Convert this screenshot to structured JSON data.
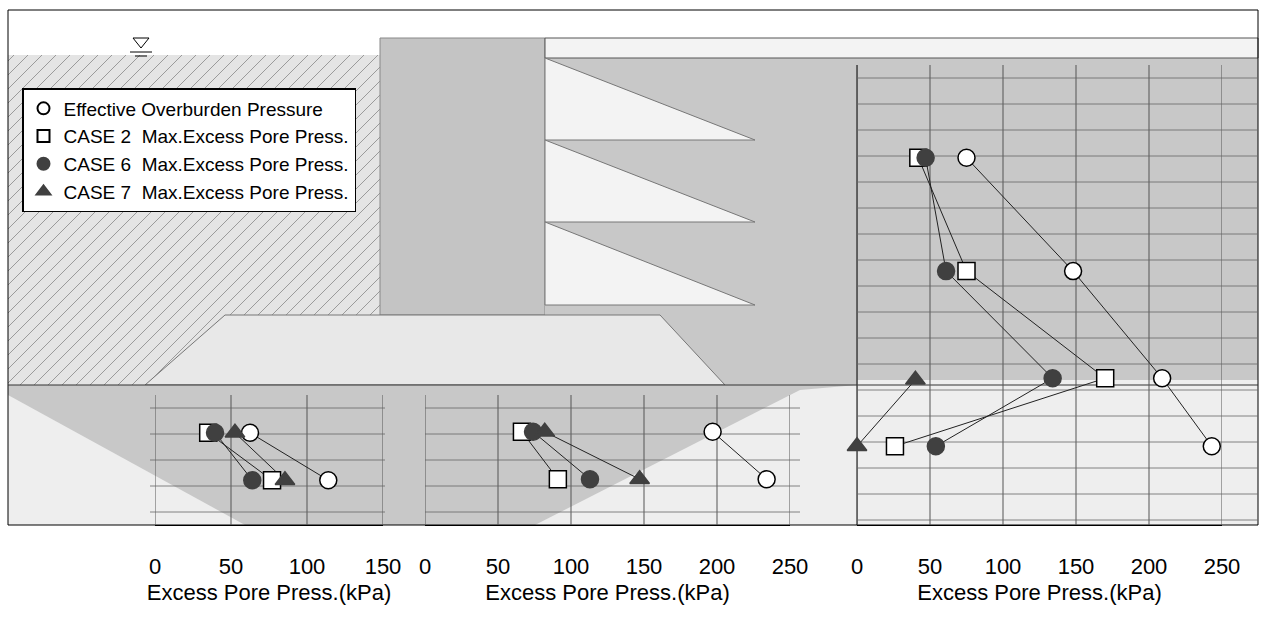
{
  "chart_data": [
    {
      "type": "scatter",
      "xlabel": "Excess Pore Press.(kPa)",
      "xlim": [
        0,
        150
      ],
      "xticks": [
        0,
        50,
        100,
        150
      ],
      "ylim": [
        100,
        0
      ],
      "grid": true,
      "tick_labels": "x",
      "legend": "upper left",
      "series": [
        {
          "name": "Effective Overburden Pressure",
          "marker": "circle-open",
          "color": "#000000",
          "x": [
            62.5,
            114
          ],
          "y": [
            82.1,
            91.3
          ]
        },
        {
          "name": "CASE 2  Max.Excess Pore Press.",
          "marker": "square-open",
          "color": "#000000",
          "x": [
            35,
            77
          ],
          "y": [
            82.1,
            91.3
          ]
        },
        {
          "name": "CASE 6  Max.Excess Pore Press.",
          "marker": "circle",
          "color": "#404040",
          "x": [
            39.5,
            64
          ],
          "y": [
            82.1,
            91.3
          ]
        },
        {
          "name": "CASE 7  Max.Excess Pore Press.",
          "marker": "triangle-up",
          "color": "#404040",
          "x": [
            52.6,
            85.5
          ],
          "y": [
            82.1,
            91.3
          ]
        }
      ]
    },
    {
      "type": "scatter",
      "xlabel": "Excess Pore Press.(kPa)",
      "xlim": [
        0,
        250
      ],
      "xticks": [
        0,
        50,
        100,
        150,
        200,
        250
      ],
      "ylim": [
        100,
        0
      ],
      "grid": true,
      "tick_labels": "x",
      "series": [
        {
          "name": "Effective Overburden Pressure",
          "marker": "circle-open",
          "color": "#000000",
          "x": [
            197,
            234
          ],
          "y": [
            81.9,
            91.1
          ]
        },
        {
          "name": "CASE 2  Max.Excess Pore Press.",
          "marker": "square-open",
          "color": "#000000",
          "x": [
            66.4,
            91
          ],
          "y": [
            81.9,
            91.1
          ]
        },
        {
          "name": "CASE 6  Max.Excess Pore Press.",
          "marker": "circle",
          "color": "#404040",
          "x": [
            74,
            113
          ],
          "y": [
            81.9,
            91.1
          ]
        },
        {
          "name": "CASE 7  Max.Excess Pore Press.",
          "marker": "triangle-up",
          "color": "#404040",
          "x": [
            82,
            147
          ],
          "y": [
            81.9,
            91.1
          ]
        }
      ]
    },
    {
      "type": "scatter",
      "xlabel": "Excess Pore Press.(kPa)",
      "xlim": [
        0,
        250
      ],
      "xticks": [
        0,
        50,
        100,
        150,
        200,
        250
      ],
      "ylim": [
        100,
        0
      ],
      "grid": true,
      "tick_labels": "x",
      "series": [
        {
          "name": "Effective Overburden Pressure",
          "marker": "circle-open",
          "color": "#000000",
          "x": [
            75,
            148,
            209,
            243
          ],
          "y": [
            28.7,
            50.7,
            71.5,
            84.7
          ]
        },
        {
          "name": "CASE 2  Max.Excess Pore Press.",
          "marker": "square-open",
          "color": "#000000",
          "x": [
            42,
            75,
            170,
            26
          ],
          "y": [
            28.7,
            50.7,
            71.5,
            84.7
          ]
        },
        {
          "name": "CASE 6  Max.Excess Pore Press.",
          "marker": "circle",
          "color": "#404040",
          "x": [
            47,
            61,
            134,
            54
          ],
          "y": [
            28.7,
            50.7,
            71.5,
            84.7
          ]
        },
        {
          "name": "CASE 7  Max.Excess Pore Press.",
          "marker": "triangle-up",
          "color": "#404040",
          "x": [
            40,
            0
          ],
          "y": [
            71.8,
            84.7
          ]
        }
      ]
    }
  ]
}
